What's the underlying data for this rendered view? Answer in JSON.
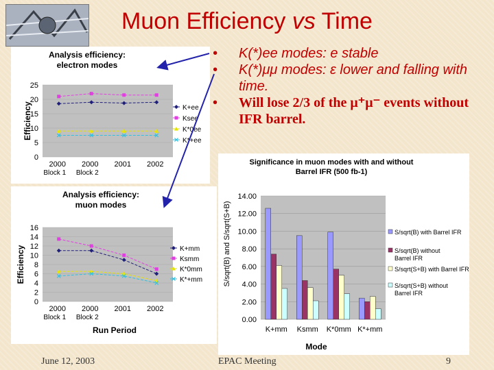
{
  "slide": {
    "title_main": "Muon Efficiency ",
    "title_vs": "vs",
    "title_end": " Time",
    "bullets": [
      {
        "text": "K(*)ee modes: e stable"
      },
      {
        "text": "K(*)μμ modes: ε lower and falling with time."
      },
      {
        "text": "Will lose 2/3 of the μ⁺μ⁻ events without IFR barrel."
      }
    ],
    "footer_date": "June 12, 2003",
    "footer_meeting": "EPAC Meeting",
    "footer_page": "9"
  },
  "chart_data": [
    {
      "type": "line",
      "title": "Analysis efficiency: electron modes",
      "ylabel": "Efficiency",
      "ylim": [
        0,
        25
      ],
      "yticks": [
        0,
        5,
        10,
        15,
        20,
        25
      ],
      "categories": [
        "2000",
        "2000",
        "2001",
        "2002"
      ],
      "category_sublabels": [
        "Block 1",
        "Block 2",
        "",
        ""
      ],
      "series": [
        {
          "name": "K+ee",
          "color": "#1f1f7a",
          "marker": "diamond",
          "values": [
            18.5,
            19.0,
            18.7,
            19.0
          ]
        },
        {
          "name": "Ksee",
          "color": "#e040e0",
          "marker": "square",
          "values": [
            21.0,
            22.0,
            21.5,
            21.5
          ]
        },
        {
          "name": "K*0ee",
          "color": "#e6e600",
          "marker": "triangle",
          "values": [
            9.0,
            9.0,
            9.0,
            9.0
          ]
        },
        {
          "name": "K*+ee",
          "color": "#30c0e0",
          "marker": "x",
          "values": [
            7.5,
            7.5,
            7.5,
            7.5
          ]
        }
      ]
    },
    {
      "type": "line",
      "title": "Analysis efficiency: muon modes",
      "xlabel": "Run Period",
      "ylabel": "Efficiency",
      "ylim": [
        0,
        16
      ],
      "yticks": [
        0,
        2,
        4,
        6,
        8,
        10,
        12,
        14,
        16
      ],
      "categories": [
        "2000",
        "2000",
        "2001",
        "2002"
      ],
      "category_sublabels": [
        "Block 1",
        "Block 2",
        "",
        ""
      ],
      "series": [
        {
          "name": "K+mm",
          "color": "#1f1f7a",
          "marker": "diamond",
          "values": [
            11.0,
            11.0,
            9.0,
            6.0
          ]
        },
        {
          "name": "Ksmm",
          "color": "#e040e0",
          "marker": "square",
          "values": [
            13.5,
            12.0,
            10.0,
            7.0
          ]
        },
        {
          "name": "K*0mm",
          "color": "#e6e600",
          "marker": "triangle",
          "values": [
            6.5,
            6.5,
            6.0,
            4.5
          ]
        },
        {
          "name": "K*+mm",
          "color": "#30c0e0",
          "marker": "x",
          "values": [
            5.5,
            6.0,
            5.5,
            4.0
          ]
        }
      ]
    },
    {
      "type": "bar",
      "title": "Significance in muon modes with and without Barrel IFR (500 fb-1)",
      "xlabel": "Mode",
      "ylabel": "S/sqrt(B) and S/sqrt(S+B)",
      "ylim": [
        0,
        14
      ],
      "yticks": [
        "0.00",
        "2.00",
        "4.00",
        "6.00",
        "8.00",
        "10.00",
        "12.00",
        "14.00"
      ],
      "categories": [
        "K+mm",
        "Ksmm",
        "K*0mm",
        "K*+mm"
      ],
      "series": [
        {
          "name": "S/sqrt(B) with Barrel IFR",
          "color": "#9999ff",
          "values": [
            12.6,
            9.5,
            9.9,
            2.4
          ]
        },
        {
          "name": "S/sqrt(B) without Barrel IFR",
          "color": "#993366",
          "values": [
            7.4,
            4.4,
            5.7,
            2.0
          ]
        },
        {
          "name": "S/sqrt(S+B) with Barrel IFR",
          "color": "#ffffcc",
          "values": [
            6.1,
            3.6,
            5.0,
            2.6
          ]
        },
        {
          "name": "S/sqrt(S+B) without Barrel IFR",
          "color": "#ccffff",
          "values": [
            3.5,
            2.1,
            2.9,
            1.2
          ]
        }
      ]
    }
  ]
}
